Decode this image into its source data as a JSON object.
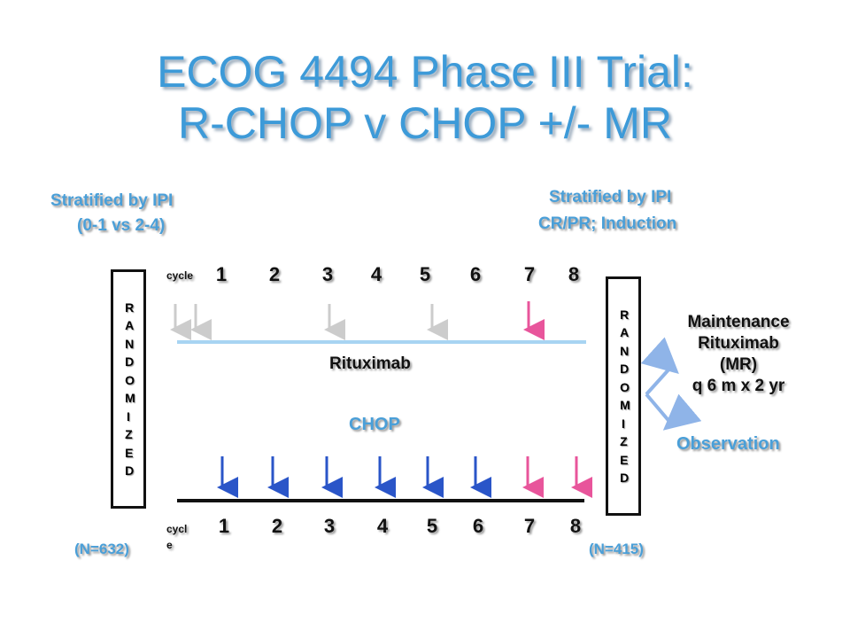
{
  "title": {
    "line1": "ECOG 4494 Phase III Trial:",
    "line2": "R-CHOP v CHOP +/- MR"
  },
  "left_stratification": {
    "line1": "Stratified by IPI",
    "line2": "(0-1 vs 2-4)"
  },
  "right_stratification": {
    "line1": "Stratified by IPI",
    "line2": "CR/PR; Induction"
  },
  "first_randomization": {
    "label": "RANDOMIZED",
    "n": "(N=632)"
  },
  "second_randomization": {
    "label": "RANDOMIZED",
    "n": "(N=415)"
  },
  "top_timeline": {
    "cycle_label": "cycle",
    "cycles": [
      1,
      2,
      3,
      4,
      5,
      6,
      7,
      8
    ],
    "label": "Rituximab"
  },
  "bottom_timeline": {
    "cycle_label": "cycle",
    "cycles": [
      1,
      2,
      3,
      4,
      5,
      6,
      7,
      8
    ],
    "label": "CHOP"
  },
  "maintenance_arm": {
    "lines": [
      "Maintenance",
      "Rituximab",
      "(MR)",
      "q 6 m x 2 yr"
    ]
  },
  "observation_arm": {
    "label": "Observation"
  }
}
